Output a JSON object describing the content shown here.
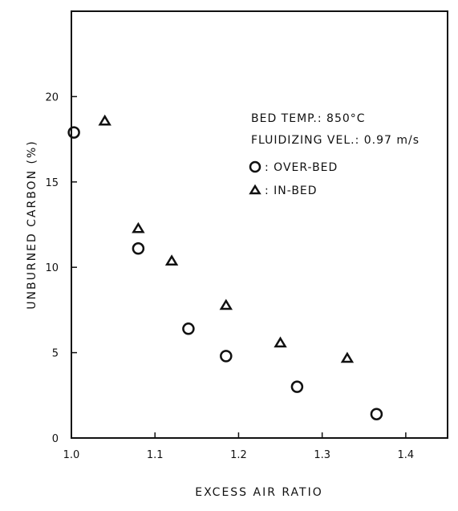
{
  "chart_data": {
    "type": "scatter",
    "title": "",
    "xlabel": "EXCESS AIR RATIO",
    "ylabel": "UNBURNED CARBON (%)",
    "xlim": [
      1.0,
      1.45
    ],
    "ylim": [
      0,
      25
    ],
    "x_ticks": [
      1.0,
      1.1,
      1.2,
      1.3,
      1.4
    ],
    "x_tick_labels": [
      "1.0",
      "1.1",
      "1.2",
      "1.3",
      "1.4"
    ],
    "y_ticks": [
      0,
      5,
      10,
      15,
      20
    ],
    "y_tick_labels": [
      "0",
      "5",
      "10",
      "15",
      "20"
    ],
    "grid": false,
    "legend_position": "top-right",
    "annotations": [
      "BED TEMP.: 850°C",
      "FLUIDIZING VEL.: 0.97 m/s"
    ],
    "series": [
      {
        "name": "OVER-BED",
        "marker": "circle",
        "legend_label": ": OVER-BED",
        "x": [
          1.003,
          1.08,
          1.14,
          1.185,
          1.27,
          1.365
        ],
        "y": [
          17.9,
          11.1,
          6.4,
          4.8,
          3.0,
          1.4
        ]
      },
      {
        "name": "IN-BED",
        "marker": "triangle",
        "legend_label": ": IN-BED",
        "x": [
          1.04,
          1.08,
          1.12,
          1.185,
          1.25,
          1.33
        ],
        "y": [
          18.6,
          12.3,
          10.4,
          7.8,
          5.6,
          4.7
        ]
      }
    ]
  }
}
